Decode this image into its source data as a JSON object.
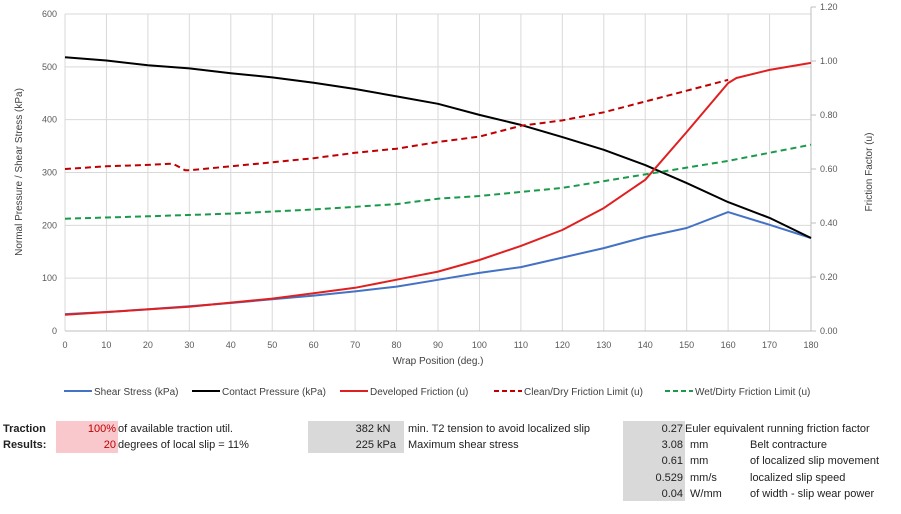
{
  "chart_data": {
    "type": "line",
    "xlabel": "Wrap Position (deg.)",
    "ylabel": "Normal Pressure / Shear Stress (kPa)",
    "y2label": "Friction Factor (u)",
    "xlim": [
      0,
      180
    ],
    "ylim": [
      0,
      600
    ],
    "y2lim": [
      0,
      1.2
    ],
    "xticks": [
      "0",
      "10",
      "20",
      "30",
      "40",
      "50",
      "60",
      "70",
      "80",
      "90",
      "100",
      "110",
      "120",
      "130",
      "140",
      "150",
      "160",
      "170",
      "180"
    ],
    "yticks": [
      "0",
      "100",
      "200",
      "300",
      "400",
      "500",
      "600"
    ],
    "y2ticks": [
      "0.00",
      "0.20",
      "0.40",
      "0.60",
      "0.80",
      "1.00",
      "1.20"
    ],
    "grid": true,
    "legend": "bottom",
    "series": [
      {
        "name": "Shear Stress (kPa)",
        "axis": "left",
        "color": "#4472c4",
        "dash": false,
        "x": [
          0,
          10,
          20,
          30,
          40,
          50,
          60,
          70,
          80,
          90,
          100,
          110,
          120,
          130,
          140,
          150,
          160,
          170,
          180
        ],
        "y": [
          32,
          36,
          41,
          47,
          53,
          60,
          67,
          75,
          84,
          97,
          110,
          121,
          139,
          157,
          178,
          195,
          225,
          201,
          176
        ]
      },
      {
        "name": "Contact Pressure (kPa)",
        "axis": "left",
        "color": "#000000",
        "dash": false,
        "x": [
          0,
          10,
          20,
          30,
          40,
          50,
          60,
          70,
          80,
          90,
          100,
          110,
          120,
          130,
          140,
          150,
          160,
          170,
          180
        ],
        "y": [
          518,
          512,
          503,
          497,
          488,
          480,
          470,
          458,
          444,
          430,
          409,
          390,
          367,
          343,
          314,
          280,
          244,
          214,
          176
        ]
      },
      {
        "name": "Developed Friction  (u)",
        "axis": "right",
        "color": "#e02020",
        "dash": false,
        "x": [
          0,
          10,
          20,
          30,
          40,
          50,
          60,
          70,
          80,
          90,
          100,
          110,
          120,
          130,
          140,
          150,
          160,
          162,
          170,
          180
        ],
        "y": [
          0.06,
          0.07,
          0.08,
          0.09,
          0.105,
          0.12,
          0.14,
          0.16,
          0.19,
          0.22,
          0.263,
          0.315,
          0.374,
          0.455,
          0.56,
          0.737,
          0.918,
          0.937,
          0.967,
          0.993
        ]
      },
      {
        "name": "Clean/Dry Friction Limit (u)",
        "axis": "right",
        "color": "#c00000",
        "dash": true,
        "x": [
          0,
          10,
          20,
          26,
          29,
          30,
          40,
          50,
          60,
          70,
          80,
          90,
          100,
          110,
          120,
          130,
          140,
          150,
          160
        ],
        "y": [
          0.6,
          0.61,
          0.615,
          0.62,
          0.595,
          0.595,
          0.61,
          0.625,
          0.64,
          0.66,
          0.675,
          0.7,
          0.72,
          0.76,
          0.78,
          0.81,
          0.85,
          0.89,
          0.93
        ]
      },
      {
        "name": "Wet/Dirty Friction Limit (u)",
        "axis": "right",
        "color": "#1a9a4a",
        "dash": true,
        "x": [
          0,
          20,
          40,
          60,
          80,
          90,
          100,
          120,
          140,
          160,
          180
        ],
        "y": [
          0.416,
          0.425,
          0.435,
          0.45,
          0.47,
          0.49,
          0.5,
          0.53,
          0.58,
          0.63,
          0.69
        ]
      }
    ]
  },
  "results": {
    "label1": "Traction",
    "label2": "Results:",
    "col1": [
      {
        "value": "100%",
        "text": "of available traction util."
      },
      {
        "value": "20",
        "text": "degrees of local slip = 11%"
      }
    ],
    "col2": [
      {
        "value": "382",
        "unit": "kN",
        "text": "min. T2 tension to avoid localized slip"
      },
      {
        "value": "225",
        "unit": "kPa",
        "text": "Maximum shear stress"
      }
    ],
    "col3": [
      {
        "value": "0.27",
        "unit": "",
        "text": "Euler equivalent running friction factor"
      },
      {
        "value": "3.08",
        "unit": "mm",
        "text": "Belt contracture"
      },
      {
        "value": "0.61",
        "unit": "mm",
        "text": "of localized slip movement"
      },
      {
        "value": "0.529",
        "unit": "mm/s",
        "text": "localized slip speed"
      },
      {
        "value": "0.04",
        "unit": "W/mm",
        "text": "of width - slip wear power"
      }
    ],
    "colors": {
      "highlight": "#f8c8cc",
      "input": "#d9d9d9",
      "value_red": "#c00000"
    }
  }
}
